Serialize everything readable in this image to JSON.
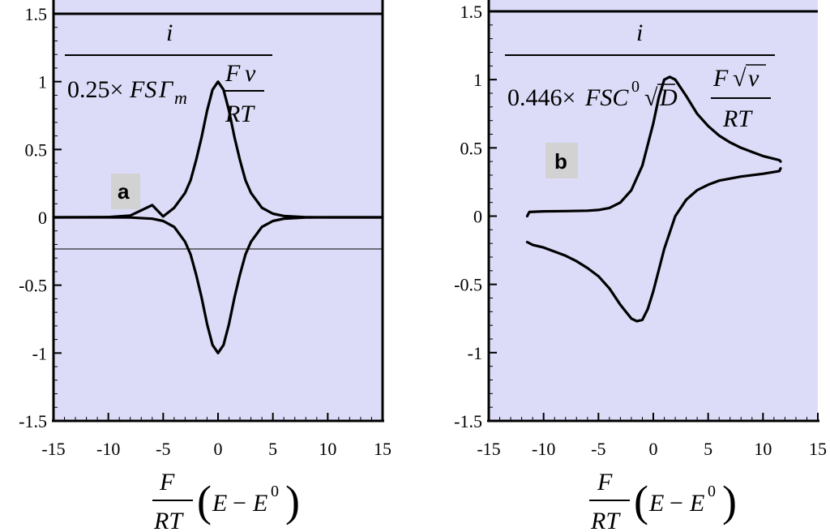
{
  "chart_data": [
    {
      "panel_label": "a",
      "type": "line",
      "xlim": [
        -15,
        15
      ],
      "ylim": [
        -1.5,
        1.5
      ],
      "x_ticks": [
        -15,
        -10,
        -5,
        0,
        5,
        10,
        15
      ],
      "y_ticks": [
        -1.5,
        -1,
        -0.5,
        0,
        0.5,
        1,
        1.5
      ],
      "x_tick_labels": [
        "-15",
        "-10",
        "-5",
        "0",
        "5",
        "10",
        "15"
      ],
      "y_tick_labels": [
        "-1.5",
        "-1",
        "-0.5",
        "0",
        "0.5",
        "1",
        "1.5"
      ],
      "xlabel": "F/RT (E − E⁰)",
      "ylabel": "i / (0.25 × FSΓm Fν/RT)",
      "background_color": "#dcdcf8",
      "line_color": "#000000",
      "nu_color": "#e00000",
      "series": [
        {
          "x": [
            -15,
            -12,
            -10,
            -8,
            -6,
            -5,
            -4,
            -3,
            -2.5,
            -2,
            -1.5,
            -1,
            -0.5,
            0,
            0.5,
            1,
            1.5,
            2,
            2.5,
            3,
            4,
            5,
            6,
            8,
            10,
            12,
            15
          ],
          "y": [
            0,
            0.0004,
            0.002,
            0.0134,
            0.0904,
            0.0067,
            0.0707,
            0.1807,
            0.2742,
            0.42,
            0.5906,
            0.7864,
            0.94,
            1.0,
            0.94,
            0.7864,
            0.5906,
            0.42,
            0.2742,
            0.1807,
            0.0707,
            0.0267,
            0.0099,
            0.0013,
            0.0002,
            0,
            0
          ]
        },
        {
          "x": [
            15,
            12,
            10,
            8,
            6,
            5,
            4,
            3,
            2.5,
            2,
            1.5,
            1,
            0.5,
            0,
            -0.5,
            -1,
            -1.5,
            -2,
            -2.5,
            -3,
            -4,
            -5,
            -6,
            -8,
            -10,
            -12,
            -15
          ],
          "y": [
            0,
            0,
            -0.0002,
            -0.0013,
            -0.0099,
            -0.0267,
            -0.0707,
            -0.1807,
            -0.2742,
            -0.42,
            -0.5906,
            -0.7864,
            -0.94,
            -1.0,
            -0.94,
            -0.7864,
            -0.5906,
            -0.42,
            -0.2742,
            -0.1807,
            -0.0707,
            -0.0267,
            -0.0099,
            -0.0013,
            -0.0002,
            0,
            0
          ]
        }
      ]
    },
    {
      "panel_label": "b",
      "type": "line",
      "xlim": [
        -15,
        15
      ],
      "ylim": [
        -1.5,
        1.5
      ],
      "x_ticks": [
        -15,
        -10,
        -5,
        0,
        5,
        10,
        15
      ],
      "y_ticks": [
        -1.5,
        -1,
        -0.5,
        0,
        0.5,
        1,
        1.5
      ],
      "x_tick_labels": [
        "-15",
        "-10",
        "-5",
        "0",
        "5",
        "10",
        "15"
      ],
      "y_tick_labels": [
        "-1.5",
        "-1",
        "-0.5",
        "0",
        "0.5",
        "1",
        "1.5"
      ],
      "xlabel": "F/RT (E − E⁰)",
      "ylabel": "i / (0.446 × FSC⁰ √D F√ν/RT)",
      "background_color": "#dcdcf8",
      "line_color": "#000000",
      "nu_color": "#e00000",
      "series": [
        {
          "x": [
            -11.5,
            -11.3,
            -10,
            -8,
            -6,
            -5,
            -4,
            -3,
            -2,
            -1,
            0,
            0.5,
            1,
            1.5,
            2,
            3,
            4,
            5,
            6,
            7,
            8,
            9,
            10,
            11,
            11.5,
            11.6
          ],
          "y": [
            -0.0,
            0.03,
            0.035,
            0.037,
            0.04,
            0.045,
            0.06,
            0.1,
            0.19,
            0.37,
            0.68,
            0.87,
            1.0,
            1.02,
            1.0,
            0.88,
            0.75,
            0.66,
            0.59,
            0.54,
            0.5,
            0.47,
            0.44,
            0.42,
            0.41,
            0.4
          ]
        },
        {
          "x": [
            11.6,
            11.5,
            10,
            8,
            6,
            5,
            4,
            3,
            2,
            1,
            0,
            -0.5,
            -1,
            -1.5,
            -2,
            -3,
            -4,
            -5,
            -6,
            -7,
            -8,
            -9,
            -10,
            -11,
            -11.5
          ],
          "y": [
            0.35,
            0.33,
            0.31,
            0.29,
            0.26,
            0.23,
            0.19,
            0.12,
            0.0,
            -0.24,
            -0.55,
            -0.68,
            -0.76,
            -0.77,
            -0.75,
            -0.65,
            -0.53,
            -0.44,
            -0.38,
            -0.33,
            -0.29,
            -0.26,
            -0.23,
            -0.21,
            -0.19
          ]
        }
      ]
    }
  ]
}
